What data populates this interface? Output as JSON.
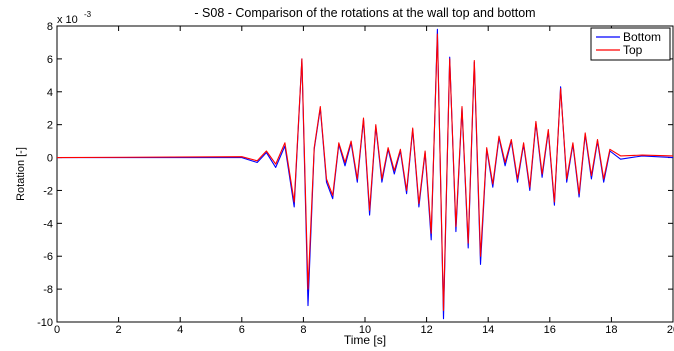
{
  "chart_data": {
    "type": "line",
    "title": "- S08 - Comparison of the rotations at the wall top and bottom",
    "xlabel": "Time [s]",
    "ylabel": "Rotation [-]",
    "y_exponent_label": "x 10",
    "y_exponent_power": "-3",
    "xlim": [
      0,
      20
    ],
    "ylim": [
      -10,
      8
    ],
    "x_ticks": [
      "0",
      "2",
      "4",
      "6",
      "8",
      "10",
      "12",
      "14",
      "16",
      "18",
      "20"
    ],
    "y_ticks": [
      "-10",
      "-8",
      "-6",
      "-4",
      "-2",
      "0",
      "2",
      "4",
      "6",
      "8"
    ],
    "grid": false,
    "legend_position": "top-right",
    "series": [
      {
        "name": "Bottom",
        "color": "#0000ff",
        "x": [
          0,
          6.0,
          6.5,
          6.8,
          7.1,
          7.4,
          7.7,
          7.95,
          8.15,
          8.35,
          8.55,
          8.75,
          8.95,
          9.15,
          9.35,
          9.55,
          9.75,
          9.95,
          10.15,
          10.35,
          10.55,
          10.75,
          10.95,
          11.15,
          11.35,
          11.55,
          11.75,
          11.95,
          12.15,
          12.35,
          12.55,
          12.75,
          12.95,
          13.15,
          13.35,
          13.55,
          13.75,
          13.95,
          14.15,
          14.35,
          14.55,
          14.75,
          14.95,
          15.15,
          15.35,
          15.55,
          15.75,
          15.95,
          16.15,
          16.35,
          16.55,
          16.75,
          16.95,
          17.15,
          17.35,
          17.55,
          17.75,
          17.95,
          18.3,
          19.0,
          20.0
        ],
        "y": [
          0,
          0,
          -0.3,
          0.3,
          -0.6,
          0.7,
          -3.0,
          6.0,
          -9.0,
          0.5,
          3.0,
          -1.5,
          -2.5,
          0.8,
          -0.5,
          0.9,
          -1.5,
          2.3,
          -3.5,
          1.9,
          -1.5,
          0.5,
          -1.0,
          0.4,
          -2.2,
          1.7,
          -3.0,
          0.3,
          -5.0,
          7.8,
          -9.8,
          6.1,
          -4.5,
          3.0,
          -5.5,
          5.8,
          -6.5,
          0.5,
          -1.8,
          1.2,
          -0.5,
          1.0,
          -1.5,
          0.8,
          -2.0,
          2.1,
          -1.2,
          1.6,
          -2.9,
          4.3,
          -1.5,
          0.8,
          -2.4,
          1.4,
          -1.3,
          1.0,
          -1.5,
          0.4,
          -0.1,
          0.1,
          0
        ]
      },
      {
        "name": "Top",
        "color": "#ff0000",
        "x": [
          0,
          6.0,
          6.5,
          6.8,
          7.1,
          7.4,
          7.7,
          7.95,
          8.15,
          8.35,
          8.55,
          8.75,
          8.95,
          9.15,
          9.35,
          9.55,
          9.75,
          9.95,
          10.15,
          10.35,
          10.55,
          10.75,
          10.95,
          11.15,
          11.35,
          11.55,
          11.75,
          11.95,
          12.15,
          12.35,
          12.55,
          12.75,
          12.95,
          13.15,
          13.35,
          13.55,
          13.75,
          13.95,
          14.15,
          14.35,
          14.55,
          14.75,
          14.95,
          15.15,
          15.35,
          15.55,
          15.75,
          15.95,
          16.15,
          16.35,
          16.55,
          16.75,
          16.95,
          17.15,
          17.35,
          17.55,
          17.75,
          17.95,
          18.3,
          19.0,
          20.0
        ],
        "y": [
          0,
          0.05,
          -0.2,
          0.4,
          -0.4,
          0.9,
          -2.7,
          6.0,
          -8.0,
          0.6,
          3.1,
          -1.3,
          -2.3,
          0.9,
          -0.3,
          1.0,
          -1.3,
          2.4,
          -3.2,
          2.0,
          -1.3,
          0.6,
          -0.8,
          0.5,
          -2.0,
          1.8,
          -2.8,
          0.4,
          -4.6,
          7.5,
          -9.3,
          6.0,
          -4.2,
          3.1,
          -5.2,
          5.9,
          -6.0,
          0.6,
          -1.6,
          1.3,
          -0.3,
          1.1,
          -1.3,
          0.9,
          -1.8,
          2.2,
          -1.0,
          1.7,
          -2.7,
          4.2,
          -1.3,
          0.9,
          -2.2,
          1.5,
          -1.1,
          1.1,
          -1.3,
          0.5,
          0.1,
          0.15,
          0.1
        ]
      }
    ]
  }
}
